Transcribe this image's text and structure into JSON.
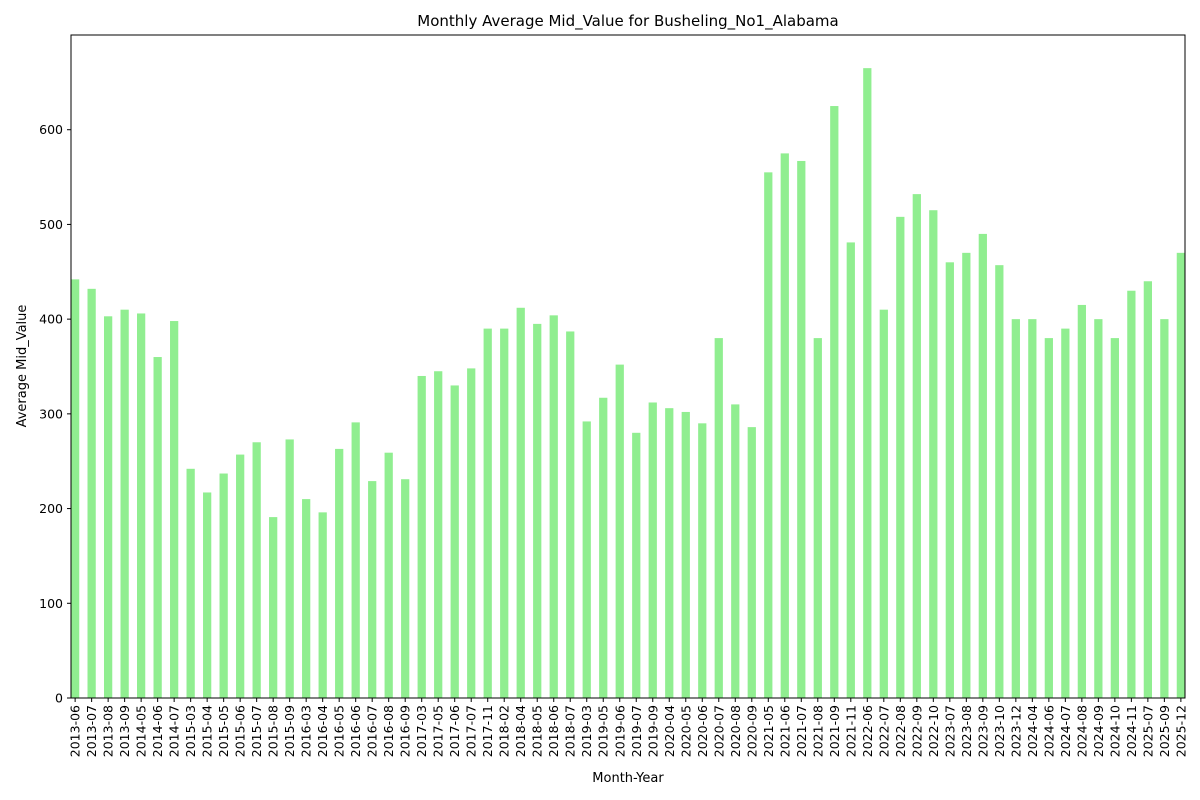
{
  "chart_data": {
    "type": "bar",
    "title": "Monthly Average Mid_Value for Busheling_No1_Alabama",
    "xlabel": "Month-Year",
    "ylabel": "Average Mid_Value",
    "ylim": [
      0,
      700
    ],
    "yticks": [
      0,
      100,
      200,
      300,
      400,
      500,
      600
    ],
    "bar_color": "#90ee90",
    "grid": false,
    "categories": [
      "2013-06",
      "2013-07",
      "2013-08",
      "2013-09",
      "2014-05",
      "2014-06",
      "2014-07",
      "2015-03",
      "2015-04",
      "2015-05",
      "2015-06",
      "2015-07",
      "2015-08",
      "2015-09",
      "2016-03",
      "2016-04",
      "2016-05",
      "2016-06",
      "2016-07",
      "2016-08",
      "2016-09",
      "2017-03",
      "2017-05",
      "2017-06",
      "2017-07",
      "2017-11",
      "2018-02",
      "2018-04",
      "2018-05",
      "2018-06",
      "2018-07",
      "2019-03",
      "2019-05",
      "2019-06",
      "2019-07",
      "2019-09",
      "2020-04",
      "2020-05",
      "2020-06",
      "2020-07",
      "2020-08",
      "2020-09",
      "2021-05",
      "2021-06",
      "2021-07",
      "2021-08",
      "2021-09",
      "2021-11",
      "2022-06",
      "2022-07",
      "2022-08",
      "2022-09",
      "2022-10",
      "2023-07",
      "2023-08",
      "2023-09",
      "2023-10",
      "2023-12",
      "2024-04",
      "2024-06",
      "2024-07",
      "2024-08",
      "2024-09",
      "2024-10",
      "2024-11",
      "2025-07",
      "2025-09",
      "2025-12"
    ],
    "values": [
      442,
      432,
      403,
      410,
      406,
      360,
      398,
      242,
      217,
      237,
      257,
      270,
      191,
      273,
      210,
      196,
      263,
      291,
      229,
      259,
      231,
      340,
      345,
      330,
      348,
      390,
      390,
      412,
      395,
      404,
      387,
      292,
      317,
      352,
      280,
      312,
      306,
      302,
      290,
      380,
      310,
      286,
      555,
      575,
      567,
      380,
      625,
      481,
      665,
      410,
      508,
      532,
      515,
      460,
      470,
      490,
      457,
      400,
      400,
      380,
      390,
      415,
      400,
      380,
      430,
      440,
      400,
      470
    ]
  }
}
